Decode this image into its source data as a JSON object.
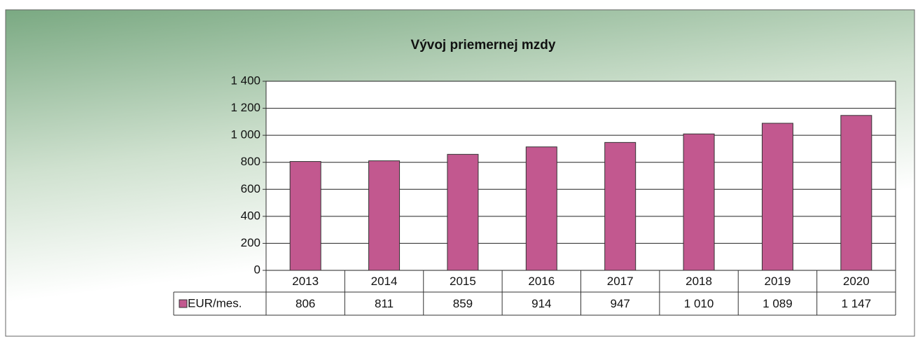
{
  "chart_data": {
    "type": "bar",
    "title": "Vývoj priemernej mzdy",
    "categories": [
      "2013",
      "2014",
      "2015",
      "2016",
      "2017",
      "2018",
      "2019",
      "2020"
    ],
    "series": [
      {
        "name": "EUR/mes.",
        "color": "#c2588f",
        "values": [
          806,
          811,
          859,
          914,
          947,
          1010,
          1089,
          1147
        ],
        "value_labels": [
          "806",
          "811",
          "859",
          "914",
          "947",
          "1 010",
          "1 089",
          "1 147"
        ]
      }
    ],
    "ylim": [
      0,
      1400
    ],
    "yticks": [
      0,
      200,
      400,
      600,
      800,
      {
        "value": 1000,
        "label": "1 000"
      },
      {
        "value": 1200,
        "label": "1 200"
      },
      {
        "value": 1400,
        "label": "1 400"
      }
    ],
    "grid": true
  }
}
